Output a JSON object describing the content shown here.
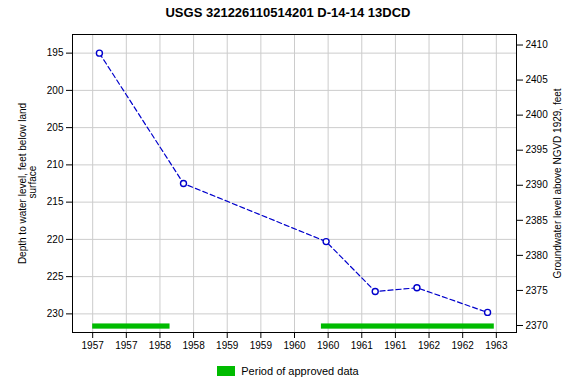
{
  "chart_data": {
    "type": "line",
    "title": "USGS 321226110514201 D-14-14 13DCD",
    "x": [
      1957.1,
      1958.35,
      1960.47,
      1961.2,
      1961.82,
      1962.87
    ],
    "series": [
      {
        "color": "#0000CC",
        "marker": "o",
        "line_style": "dashed",
        "values": [
          195.0,
          212.5,
          220.3,
          227.0,
          226.5,
          229.8
        ]
      }
    ],
    "periods": [
      {
        "name": "Period of approved data",
        "color": "#00BB00",
        "spans": [
          [
            1957.0,
            1958.15
          ],
          [
            1960.4,
            1962.97
          ]
        ],
        "y": 231.7,
        "height": 0.7
      }
    ],
    "xlim": [
      1956.7,
      1963.3
    ],
    "xticks": [
      1957,
      {
        "value": 1957.5,
        "label": "1957"
      },
      1958,
      {
        "value": 1958.5,
        "label": "1958"
      },
      1959,
      {
        "value": 1959.5,
        "label": "1959"
      },
      1960,
      {
        "value": 1960.5,
        "label": "1960"
      },
      1961,
      {
        "value": 1961.5,
        "label": "1961"
      },
      1962,
      {
        "value": 1962.5,
        "label": "1962"
      },
      1963
    ],
    "ylim": [
      232.5,
      192.5
    ],
    "yticks": [
      195,
      200,
      205,
      210,
      215,
      220,
      225,
      230
    ],
    "y2lim": [
      2369.0,
      2411.5
    ],
    "y2ticks": [
      2370,
      2375,
      2380,
      2385,
      2390,
      2395,
      2400,
      2405,
      2410
    ],
    "ylabel": "Depth to water level, feet below land\n surface",
    "y2label": "Groundwater level above NGVD 1929, feet",
    "grid": true,
    "legend": "bottom"
  }
}
